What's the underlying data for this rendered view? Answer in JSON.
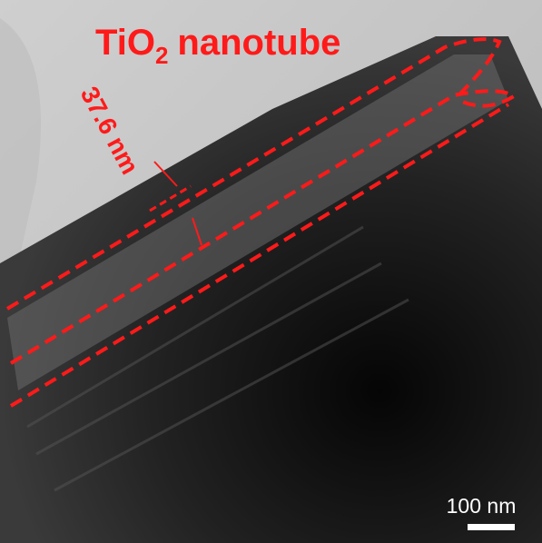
{
  "title": {
    "main": "TiO",
    "subscript": "2",
    "rest": "nanotube"
  },
  "measurement": "37.6 nm",
  "scale_bar": "100 nm"
}
